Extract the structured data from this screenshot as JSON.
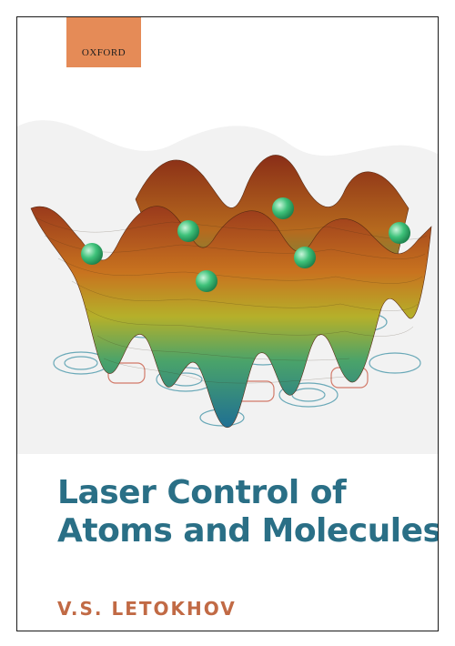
{
  "book": {
    "publisher": "OXFORD",
    "title_line1": "Laser Control of",
    "title_line2": "Atoms and Molecules",
    "author": "V.S. LETOKHOV"
  },
  "colors": {
    "publisher_box": "#e58b57",
    "title": "#2a6f86",
    "author": "#c16a45",
    "atom": "#3ec27a"
  }
}
